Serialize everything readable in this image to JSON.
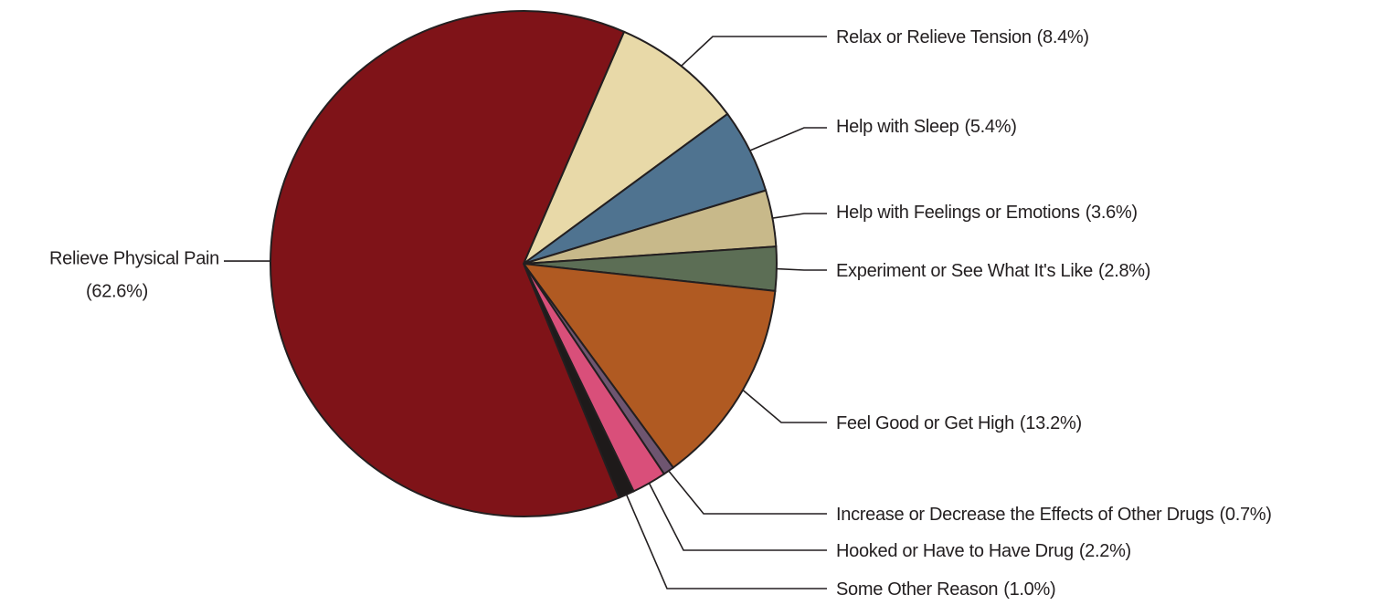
{
  "chart_data": {
    "type": "pie",
    "categories": [
      "Relax or Relieve Tension",
      "Help with Sleep",
      "Help with Feelings or Emotions",
      "Experiment or See What It's Like",
      "Feel Good or Get High",
      "Increase or Decrease the Effects of Other Drugs",
      "Hooked or Have to Have Drug",
      "Some Other Reason",
      "Relieve Physical Pain"
    ],
    "values": [
      8.4,
      5.4,
      3.6,
      2.8,
      13.2,
      0.7,
      2.2,
      1.0,
      62.6
    ],
    "value_labels": [
      "(8.4%)",
      "(5.4%)",
      "(3.6%)",
      "(2.8%)",
      "(13.2%)",
      "(0.7%)",
      "(2.2%)",
      "(1.0%)",
      "(62.6%)"
    ],
    "colors": [
      "#e8d9a8",
      "#4f7390",
      "#c8b98a",
      "#5c6e55",
      "#b05a22",
      "#6e5570",
      "#d94f7a",
      "#1e1a1a",
      "#7f1318"
    ]
  }
}
